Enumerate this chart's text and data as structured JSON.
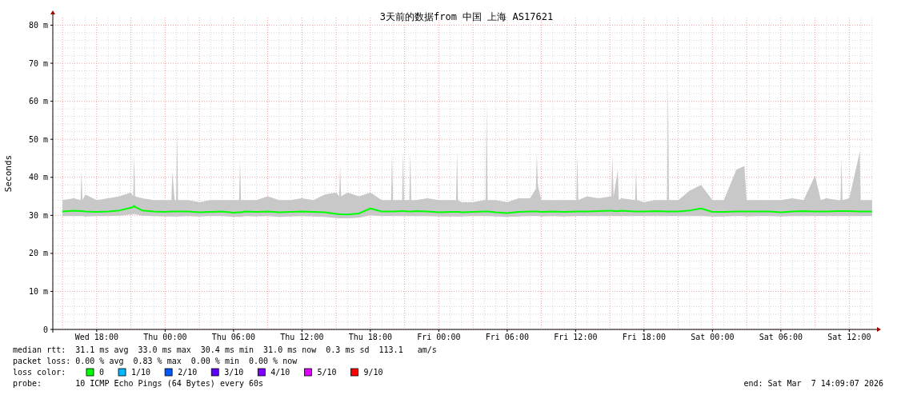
{
  "chart_data": {
    "type": "line",
    "title": "3天前的数据from 中国 上海 AS17621",
    "ylabel": "Seconds",
    "xlim": [
      "2026-03-04T14:09",
      "2026-03-07T14:09"
    ],
    "xticks": [
      {
        "value": "2026-03-04T18:00",
        "label": "Wed 18:00"
      },
      {
        "value": "2026-03-05T00:00",
        "label": "Thu 00:00"
      },
      {
        "value": "2026-03-05T06:00",
        "label": "Thu 06:00"
      },
      {
        "value": "2026-03-05T12:00",
        "label": "Thu 12:00"
      },
      {
        "value": "2026-03-05T18:00",
        "label": "Thu 18:00"
      },
      {
        "value": "2026-03-06T00:00",
        "label": "Fri 00:00"
      },
      {
        "value": "2026-03-06T06:00",
        "label": "Fri 06:00"
      },
      {
        "value": "2026-03-06T12:00",
        "label": "Fri 12:00"
      },
      {
        "value": "2026-03-06T18:00",
        "label": "Fri 18:00"
      },
      {
        "value": "2026-03-07T00:00",
        "label": "Sat 00:00"
      },
      {
        "value": "2026-03-07T06:00",
        "label": "Sat 06:00"
      },
      {
        "value": "2026-03-07T12:00",
        "label": "Sat 12:00"
      }
    ],
    "ylim": [
      0,
      82
    ],
    "yticks": [
      0,
      {
        "value": 10,
        "label": "10 m"
      },
      {
        "value": 20,
        "label": "20 m"
      },
      {
        "value": 30,
        "label": "30 m"
      },
      {
        "value": 40,
        "label": "40 m"
      },
      {
        "value": 50,
        "label": "50 m"
      },
      {
        "value": 60,
        "label": "60 m"
      },
      {
        "value": 70,
        "label": "70 m"
      },
      {
        "value": 80,
        "label": "80 m"
      }
    ],
    "grid": true,
    "series": [
      {
        "color": "#00ff00",
        "x": [
          "2026-03-04T15:00",
          "2026-03-04T16:00",
          "2026-03-04T16:35",
          "2026-03-04T16:40",
          "2026-03-04T16:45",
          "2026-03-04T17:00",
          "2026-03-04T18:00",
          "2026-03-04T19:00",
          "2026-03-04T20:00",
          "2026-03-04T21:00",
          "2026-03-04T21:12",
          "2026-03-04T21:17",
          "2026-03-04T21:22",
          "2026-03-04T22:00",
          "2026-03-04T23:00",
          "2026-03-05T00:00",
          "2026-03-05T00:33",
          "2026-03-05T00:38",
          "2026-03-05T00:50",
          "2026-03-05T00:58",
          "2026-03-05T01:03",
          "2026-03-05T01:08",
          "2026-03-05T02:00",
          "2026-03-05T03:00",
          "2026-03-05T04:00",
          "2026-03-05T05:00",
          "2026-03-05T06:00",
          "2026-03-05T06:29",
          "2026-03-05T06:34",
          "2026-03-05T06:39",
          "2026-03-05T07:00",
          "2026-03-05T08:00",
          "2026-03-05T09:00",
          "2026-03-05T10:00",
          "2026-03-05T11:00",
          "2026-03-05T12:00",
          "2026-03-05T13:00",
          "2026-03-05T14:00",
          "2026-03-05T15:00",
          "2026-03-05T15:16",
          "2026-03-05T15:21",
          "2026-03-05T15:26",
          "2026-03-05T16:00",
          "2026-03-05T17:00",
          "2026-03-05T18:00",
          "2026-03-05T19:00",
          "2026-03-05T19:49",
          "2026-03-05T19:54",
          "2026-03-05T19:59",
          "2026-03-05T20:47",
          "2026-03-05T20:52",
          "2026-03-05T20:57",
          "2026-03-05T21:25",
          "2026-03-05T21:30",
          "2026-03-05T21:35",
          "2026-03-05T22:00",
          "2026-03-05T23:00",
          "2026-03-06T00:00",
          "2026-03-06T01:00",
          "2026-03-06T01:31",
          "2026-03-06T01:36",
          "2026-03-06T01:41",
          "2026-03-06T02:00",
          "2026-03-06T03:00",
          "2026-03-06T04:00",
          "2026-03-06T04:07",
          "2026-03-06T04:12",
          "2026-03-06T04:17",
          "2026-03-06T05:00",
          "2026-03-06T06:00",
          "2026-03-06T07:00",
          "2026-03-06T08:00",
          "2026-03-06T08:31",
          "2026-03-06T08:36",
          "2026-03-06T08:41",
          "2026-03-06T09:00",
          "2026-03-06T10:00",
          "2026-03-06T11:00",
          "2026-03-06T12:04",
          "2026-03-06T12:09",
          "2026-03-06T12:14",
          "2026-03-06T13:00",
          "2026-03-06T14:00",
          "2026-03-06T15:08",
          "2026-03-06T15:13",
          "2026-03-06T15:20",
          "2026-03-06T15:42",
          "2026-03-06T15:47",
          "2026-03-06T16:00",
          "2026-03-06T17:13",
          "2026-03-06T17:18",
          "2026-03-06T17:23",
          "2026-03-06T18:00",
          "2026-03-06T19:00",
          "2026-03-06T20:01",
          "2026-03-06T20:06",
          "2026-03-06T20:11",
          "2026-03-06T21:00",
          "2026-03-06T22:00",
          "2026-03-06T23:00",
          "2026-03-07T00:00",
          "2026-03-07T01:00",
          "2026-03-07T02:06",
          "2026-03-07T02:48",
          "2026-03-07T03:00",
          "2026-03-07T04:00",
          "2026-03-07T05:00",
          "2026-03-07T06:00",
          "2026-03-07T07:00",
          "2026-03-07T08:00",
          "2026-03-07T09:00",
          "2026-03-07T09:30",
          "2026-03-07T10:00",
          "2026-03-07T11:00",
          "2026-03-07T11:14",
          "2026-03-07T11:19",
          "2026-03-07T11:24",
          "2026-03-07T12:00",
          "2026-03-07T12:50",
          "2026-03-07T12:55",
          "2026-03-07T13:00",
          "2026-03-07T14:00"
        ],
        "values": [
          31.0,
          31.2,
          31.1,
          31.1,
          31.1,
          31.0,
          30.9,
          31.0,
          31.3,
          32.0,
          32.2,
          32.5,
          32.2,
          31.3,
          31.0,
          30.9,
          31.0,
          31.0,
          31.0,
          31.0,
          31.0,
          31.0,
          31.0,
          30.8,
          30.9,
          31.0,
          30.7,
          30.8,
          30.8,
          30.8,
          31.0,
          30.9,
          31.0,
          30.8,
          30.9,
          31.0,
          30.9,
          30.8,
          30.4,
          30.3,
          30.3,
          30.3,
          30.2,
          30.5,
          31.8,
          31.0,
          31.0,
          31.0,
          31.0,
          31.1,
          31.1,
          31.1,
          31.0,
          31.0,
          31.0,
          31.1,
          31.0,
          30.8,
          30.9,
          30.9,
          30.9,
          30.9,
          30.8,
          30.9,
          31.0,
          31.0,
          31.0,
          31.0,
          30.8,
          30.6,
          30.9,
          31.0,
          31.0,
          31.0,
          31.0,
          30.9,
          31.0,
          30.9,
          31.0,
          31.0,
          31.0,
          31.0,
          31.1,
          31.2,
          31.2,
          31.1,
          31.1,
          31.1,
          31.2,
          31.0,
          31.0,
          31.0,
          31.0,
          31.1,
          31.0,
          31.0,
          31.0,
          31.0,
          31.3,
          31.8,
          30.9,
          30.9,
          31.0,
          31.0,
          31.0,
          31.0,
          31.0,
          30.8,
          31.0,
          31.1,
          31.0,
          31.0,
          31.0,
          31.1,
          31.1,
          31.1,
          31.1,
          31.1,
          31.0,
          31.0,
          31.0,
          31.0
        ],
        "lower": [
          29.8,
          29.8,
          29.8,
          29.8,
          29.8,
          29.7,
          29.8,
          29.8,
          29.9,
          30.2,
          30.3,
          30.4,
          30.3,
          29.9,
          29.8,
          29.7,
          29.7,
          29.7,
          29.7,
          29.7,
          29.7,
          29.7,
          29.8,
          29.7,
          29.8,
          29.8,
          29.6,
          29.6,
          29.6,
          29.6,
          29.8,
          29.7,
          29.8,
          29.6,
          29.7,
          29.8,
          29.7,
          29.6,
          29.3,
          29.2,
          29.2,
          29.2,
          29.2,
          29.4,
          30.0,
          29.8,
          29.8,
          29.8,
          29.8,
          29.8,
          29.8,
          29.8,
          29.8,
          29.8,
          29.8,
          29.8,
          29.8,
          29.7,
          29.7,
          29.7,
          29.7,
          29.7,
          29.7,
          29.8,
          29.8,
          29.8,
          29.8,
          29.8,
          29.7,
          29.6,
          29.7,
          29.8,
          29.8,
          29.8,
          29.8,
          29.7,
          29.8,
          29.7,
          29.8,
          29.8,
          29.8,
          29.8,
          29.8,
          29.8,
          29.8,
          29.8,
          29.8,
          29.8,
          29.8,
          29.8,
          29.8,
          29.8,
          29.8,
          29.8,
          29.8,
          29.8,
          29.8,
          29.8,
          29.8,
          29.8,
          29.7,
          29.7,
          29.8,
          29.8,
          29.7,
          29.8,
          29.8,
          29.7,
          29.8,
          29.8,
          29.8,
          29.8,
          29.8,
          29.8,
          29.8,
          29.8,
          29.8,
          29.8,
          29.8,
          29.8,
          29.8,
          29.8
        ],
        "upper": [
          34,
          34.5,
          34,
          41.5,
          34,
          35.5,
          34,
          34.5,
          35,
          36,
          35,
          46,
          35,
          34.5,
          34,
          34,
          34,
          41.5,
          34,
          34,
          52,
          34,
          34,
          33.5,
          34,
          34,
          34,
          34,
          44.5,
          34,
          34,
          34,
          35,
          34,
          34,
          34.5,
          34,
          35.5,
          36,
          35,
          43,
          35,
          36,
          35,
          36,
          34,
          34,
          46.5,
          34,
          34,
          47,
          34,
          34,
          46.5,
          34,
          34,
          34.5,
          34,
          34,
          34,
          47,
          34,
          33.5,
          33.5,
          34,
          34,
          60,
          34,
          34,
          33.5,
          34.5,
          34.5,
          37,
          46.5,
          38,
          34,
          34,
          34,
          34,
          46,
          34,
          35,
          34.5,
          35,
          45.5,
          35,
          42,
          34,
          34.5,
          34,
          42.5,
          34,
          33.5,
          34,
          34,
          65.5,
          34,
          34,
          36.5,
          38,
          34,
          34,
          42,
          43,
          34,
          34,
          34,
          34,
          34.5,
          34,
          40.5,
          34,
          34.5,
          34,
          34,
          45,
          34,
          34.5,
          45.5,
          47,
          34,
          34
        ]
      }
    ],
    "annotations": [
      "median rtt:  31.1 ms avg  33.0 ms max  30.4 ms min  31.0 ms now  0.3 ms sd  113.1   am/s",
      "packet loss: 0.00 % avg  0.83 % max  0.00 % min  0.00 % now",
      "loss color:",
      "0",
      "1/10",
      "2/10",
      "3/10",
      "4/10",
      "5/10",
      "9/10",
      "probe:       10 ICMP Echo Pings (64 Bytes) every 60s",
      "end: Sat Mar  7 14:09:07 2026"
    ]
  }
}
